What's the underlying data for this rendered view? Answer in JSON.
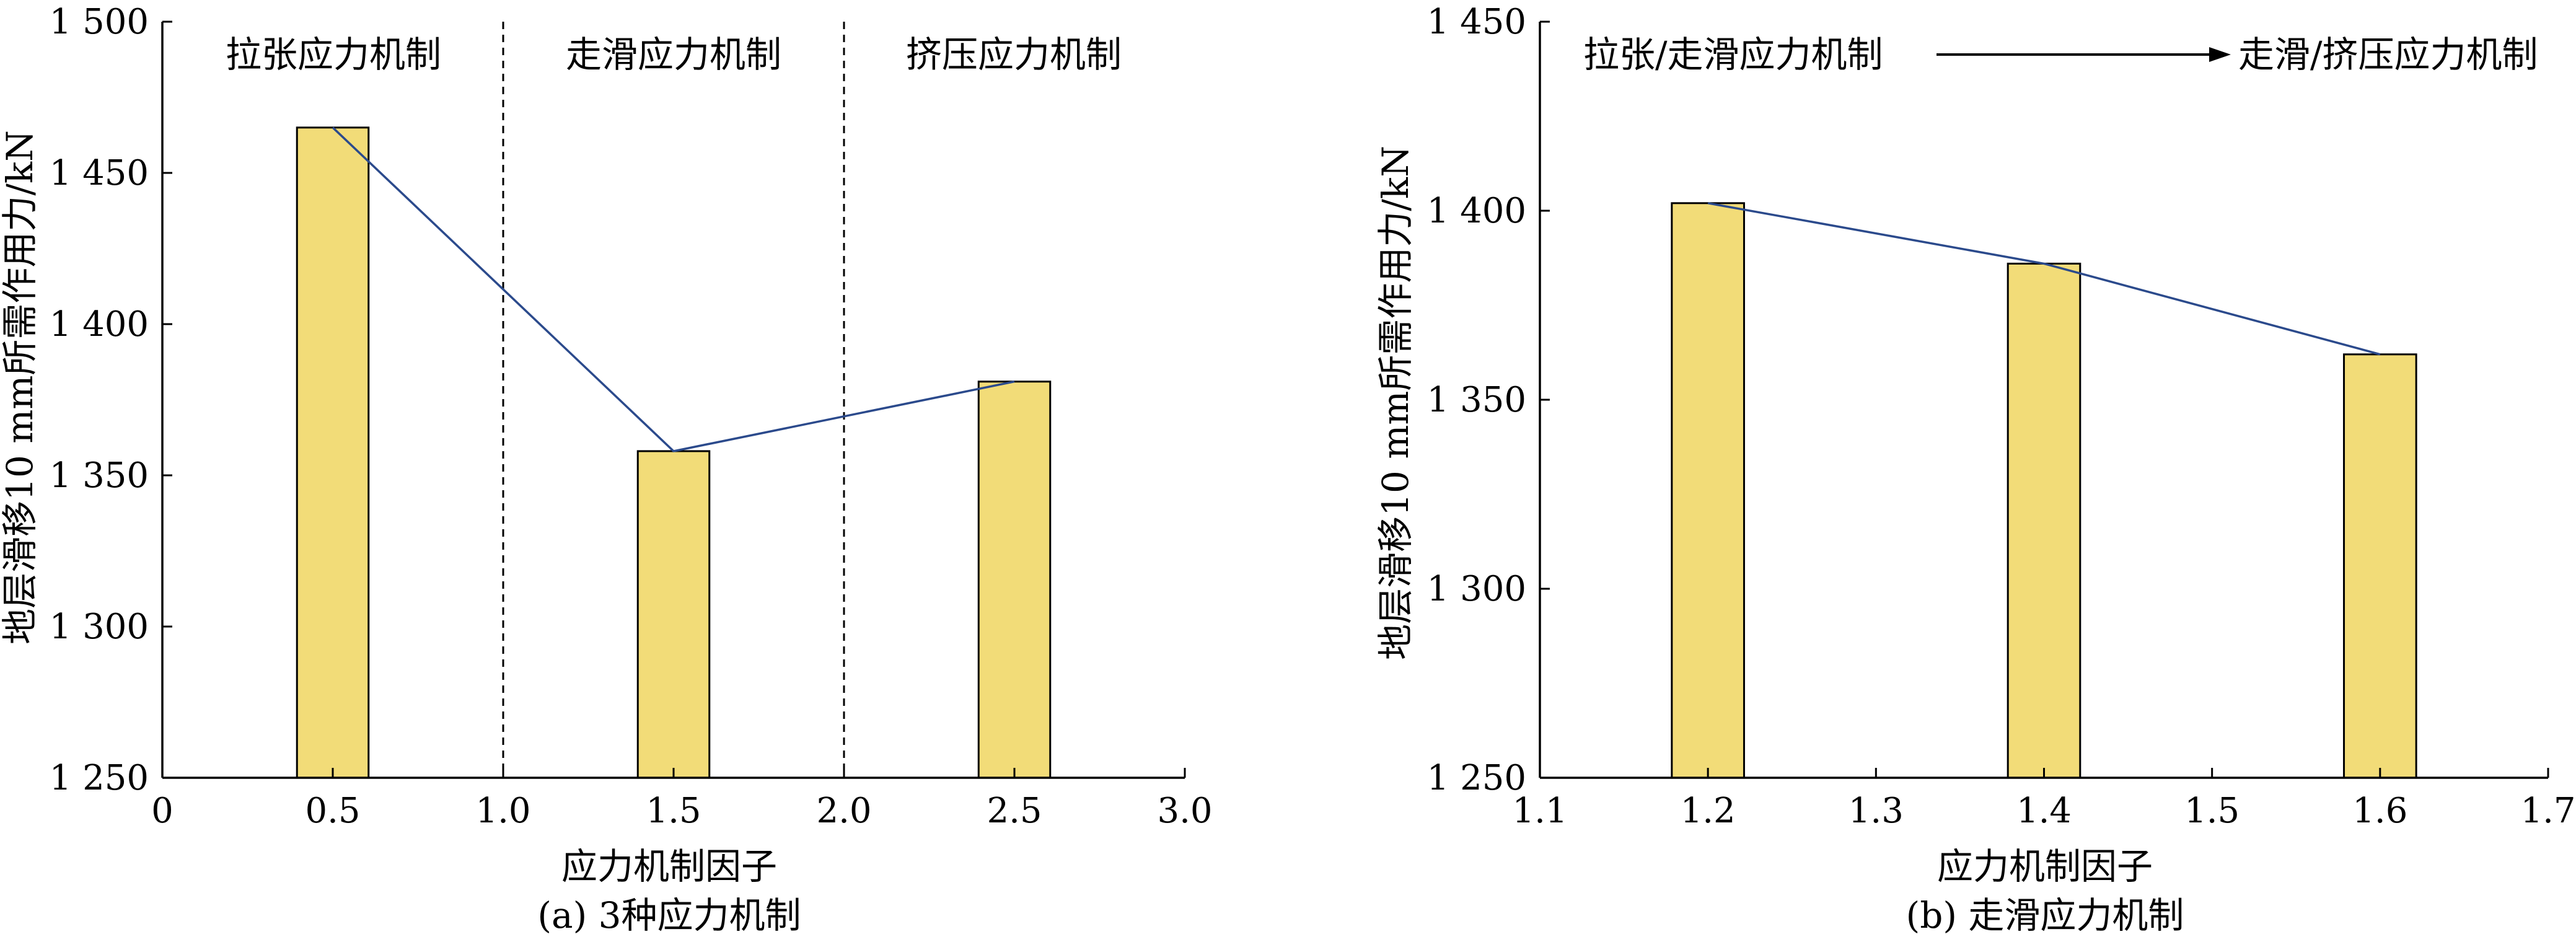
{
  "chart_data": [
    {
      "type": "bar",
      "ylabel": "地层滑移10 mm所需作用力/kN",
      "xlabel": "应力机制因子",
      "caption": "(a) 3种应力机制",
      "xlim": [
        0,
        3.0
      ],
      "ylim": [
        1250,
        1500
      ],
      "xticks": [
        "0",
        "0.5",
        "1.0",
        "1.5",
        "2.0",
        "2.5",
        "3.0"
      ],
      "yticks": [
        "1 250",
        "1 300",
        "1 350",
        "1 400",
        "1 450",
        "1 500"
      ],
      "x": [
        0.5,
        1.5,
        2.5
      ],
      "values": [
        1465,
        1358,
        1381
      ],
      "bar_width": 0.21,
      "dividers": [
        1.0,
        2.0
      ],
      "regions": [
        "拉张应力机制",
        "走滑应力机制",
        "挤压应力机制"
      ],
      "trend_line": true,
      "bar_color": "#f2dc78",
      "line_color": "#2b4a8c"
    },
    {
      "type": "bar",
      "ylabel": "地层滑移10 mm所需作用力/kN",
      "xlabel": "应力机制因子",
      "caption": "(b) 走滑应力机制",
      "xlim": [
        1.1,
        1.7
      ],
      "ylim": [
        1250,
        1450
      ],
      "xticks": [
        "1.1",
        "1.2",
        "1.3",
        "1.4",
        "1.5",
        "1.6",
        "1.7"
      ],
      "yticks": [
        "1 250",
        "1 300",
        "1 350",
        "1 400",
        "1 450"
      ],
      "x": [
        1.2,
        1.4,
        1.6
      ],
      "values": [
        1402,
        1386,
        1362
      ],
      "bar_width": 0.043,
      "annotation": {
        "from": "拉张/走滑应力机制",
        "to": "走滑/挤压应力机制"
      },
      "trend_line": true,
      "bar_color": "#f2dc78",
      "line_color": "#2b4a8c"
    }
  ]
}
